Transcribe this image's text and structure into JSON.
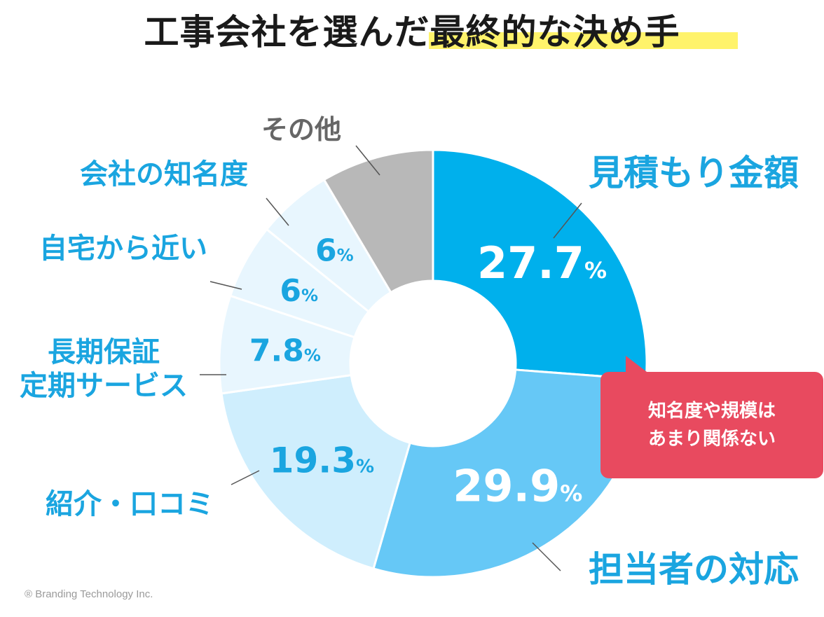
{
  "title": "工事会社を選んだ最終的な決め手",
  "callout": {
    "line1": "知名度や規模は",
    "line2": "あまり関係ない"
  },
  "copyright": "® Branding  Technology  Inc.",
  "colors": {
    "accent": "#00b0ec",
    "label": "#1aa5e0",
    "callout": "#e84a5f",
    "highlight": "#fff36b",
    "other": "#b8b8b8"
  },
  "chart_data": {
    "type": "pie",
    "donut": true,
    "unit": "%",
    "slices": [
      {
        "label": "見積もり金額",
        "value": 27.7,
        "value_label": "27.7",
        "color": "#00b0ec",
        "text_color": "#ffffff"
      },
      {
        "label": "担当者の対応",
        "value": 29.9,
        "value_label": "29.9",
        "color": "#66c8f6",
        "text_color": "#ffffff"
      },
      {
        "label": "紹介・口コミ",
        "value": 19.3,
        "value_label": "19.3",
        "color": "#cfeefd",
        "text_color": "#1aa5e0"
      },
      {
        "label": "長期保証\n定期サービス",
        "value": 7.8,
        "value_label": "7.8",
        "color": "#e8f6fe",
        "text_color": "#1aa5e0"
      },
      {
        "label": "自宅から近い",
        "value": 6,
        "value_label": "6",
        "color": "#e8f6fe",
        "text_color": "#1aa5e0"
      },
      {
        "label": "会社の知名度",
        "value": 6,
        "value_label": "6",
        "color": "#e8f6fe",
        "text_color": "#1aa5e0"
      },
      {
        "label": "その他",
        "value": 9,
        "value_label": "",
        "color": "#b8b8b8",
        "text_color": "#666666"
      }
    ]
  }
}
